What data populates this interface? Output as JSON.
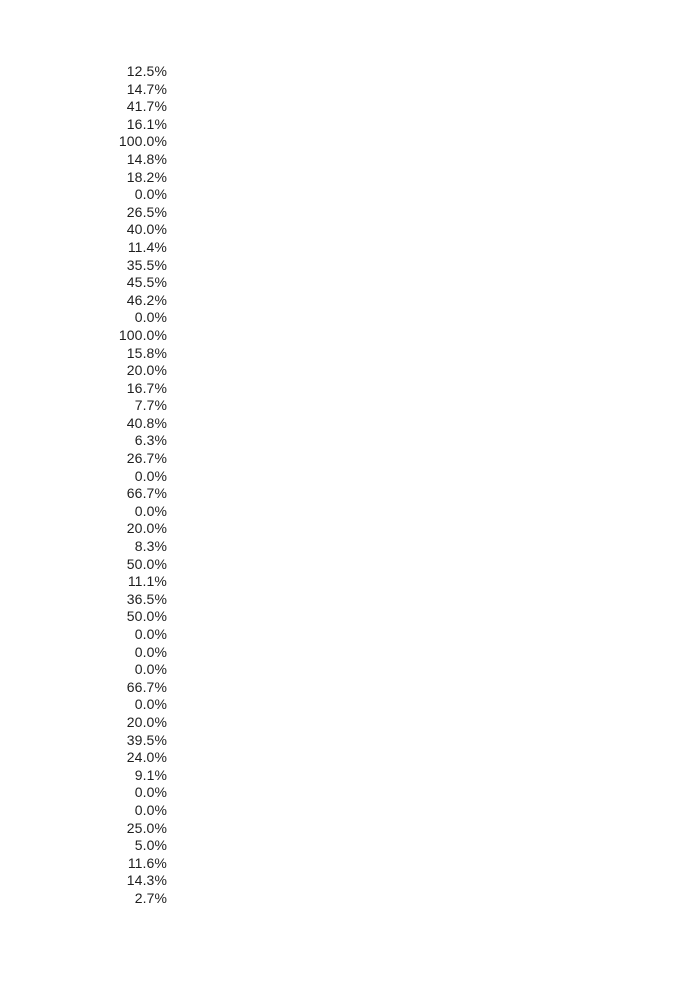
{
  "page": {
    "background": "#ffffff"
  },
  "column": {
    "description": "single right-aligned column of percentage values",
    "text_color": "#1e1e1e",
    "values": [
      "12.5%",
      "14.7%",
      "41.7%",
      "16.1%",
      "100.0%",
      "14.8%",
      "18.2%",
      "0.0%",
      "26.5%",
      "40.0%",
      "11.4%",
      "35.5%",
      "45.5%",
      "46.2%",
      "0.0%",
      "100.0%",
      "15.8%",
      "20.0%",
      "16.7%",
      "7.7%",
      "40.8%",
      "6.3%",
      "26.7%",
      "0.0%",
      "66.7%",
      "0.0%",
      "20.0%",
      "8.3%",
      "50.0%",
      "11.1%",
      "36.5%",
      "50.0%",
      "0.0%",
      "0.0%",
      "0.0%",
      "66.7%",
      "0.0%",
      "20.0%",
      "39.5%",
      "24.0%",
      "9.1%",
      "0.0%",
      "0.0%",
      "25.0%",
      "5.0%",
      "11.6%",
      "14.3%",
      "2.7%"
    ]
  }
}
